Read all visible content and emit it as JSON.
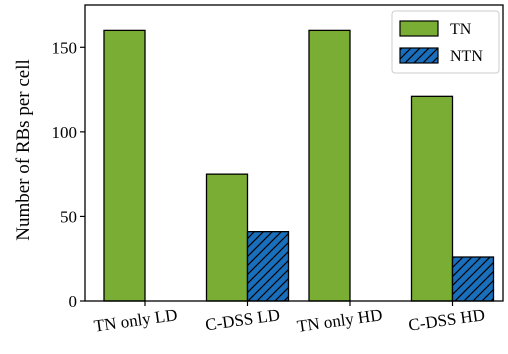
{
  "chart_data": {
    "type": "bar",
    "categories": [
      "TN only LD",
      "C-DSS LD",
      "TN only HD",
      "C-DSS HD"
    ],
    "series": [
      {
        "name": "TN",
        "values": [
          160,
          75,
          160,
          121
        ],
        "color": "#7aad34",
        "hatch": false
      },
      {
        "name": "NTN",
        "values": [
          0,
          41,
          0,
          26
        ],
        "color": "#1a6fbd",
        "hatch": true
      }
    ],
    "title": "",
    "xlabel": "",
    "ylabel": "Number of RBs per cell",
    "ylim": [
      0,
      175
    ],
    "yticks": [
      0,
      50,
      100,
      150
    ],
    "grid": false,
    "legend_position": "top-right"
  }
}
